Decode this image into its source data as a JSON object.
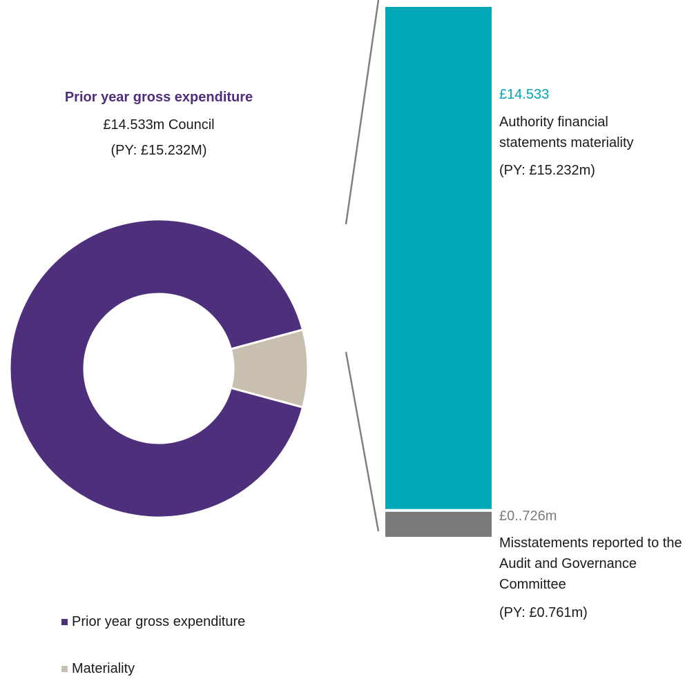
{
  "colors": {
    "expenditure": "#4e2f7b",
    "materiality": "#c8bfb0",
    "bar_top": "#00a9b5",
    "bar_bottom": "#7a7a7a",
    "connector": "#7f7f7f"
  },
  "chart_data": [
    {
      "type": "pie",
      "title": "Prior year gross expenditure",
      "subtitle_lines": [
        "£14.533m Council",
        "(PY: £15.232M)"
      ],
      "slices": [
        {
          "name": "Prior year gross expenditure",
          "value": 0.916
        },
        {
          "name": "Materiality",
          "value": 0.084
        }
      ],
      "legend_placement": "bottom-left"
    },
    {
      "type": "bar",
      "stacked": true,
      "segments": [
        {
          "value": 14.533,
          "value_label": "£14.533",
          "description": "Authority financial statements materiality",
          "prior_year": "(PY: £15.232m)"
        },
        {
          "value": 0.726,
          "value_label": "£0..726m",
          "description": "Misstatements reported to the Audit and Governance Committee",
          "prior_year": "(PY: £0.761m)"
        }
      ]
    }
  ]
}
